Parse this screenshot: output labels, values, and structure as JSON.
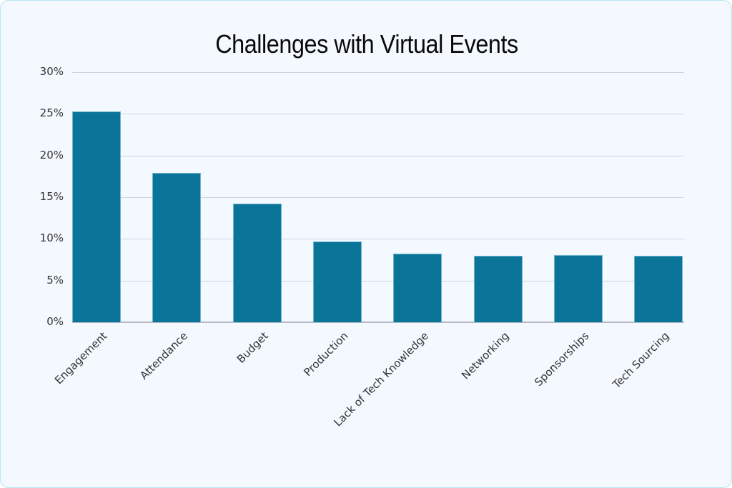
{
  "chart_data": {
    "type": "bar",
    "title": "Challenges with Virtual Events",
    "xlabel": "",
    "ylabel": "",
    "categories": [
      "Engagement",
      "Attendance",
      "Budget",
      "Production",
      "Lack of Tech Knowledge",
      "Networking",
      "Sponsorships",
      "Tech Sourcing"
    ],
    "values": [
      25.3,
      17.9,
      14.2,
      9.7,
      8.2,
      8.0,
      8.1,
      8.0
    ],
    "ylim": [
      0,
      30
    ],
    "yticks": [
      "0%",
      "5%",
      "10%",
      "15%",
      "20%",
      "25%",
      "30%"
    ],
    "grid": true,
    "legend": null,
    "bar_color": "#0b7599"
  },
  "colors": {
    "background": "#f4f8ff",
    "border": "#b8e6f2",
    "bar": "#0b7599",
    "gridline": "#cfd4da"
  }
}
